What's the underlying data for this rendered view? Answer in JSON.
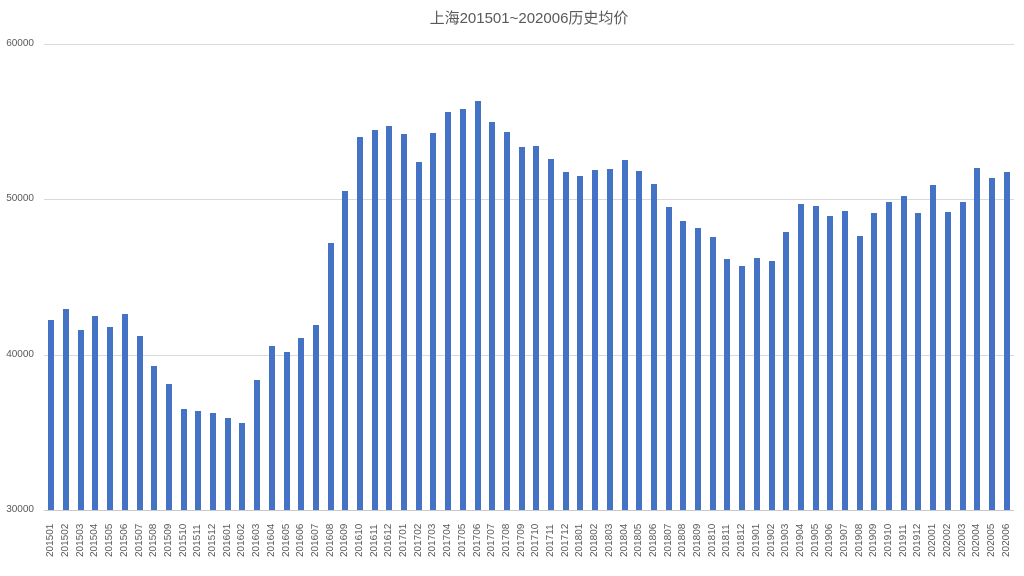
{
  "chart_data": {
    "type": "bar",
    "title": "上海201501~202006历史均价",
    "xlabel": "",
    "ylabel": "",
    "ylim": [
      30000,
      60000
    ],
    "yticks": [
      30000,
      40000,
      50000,
      60000
    ],
    "grid": true,
    "legend_position": "none",
    "bar_color": "#4472C4",
    "gridline_color": "#D9D9D9",
    "axis_line_color": "#C9C9C9",
    "text_color": "#595959",
    "categories": [
      "201501",
      "201502",
      "201503",
      "201504",
      "201505",
      "201506",
      "201507",
      "201508",
      "201509",
      "201510",
      "201511",
      "201512",
      "201601",
      "201602",
      "201603",
      "201604",
      "201605",
      "201606",
      "201607",
      "201608",
      "201609",
      "201610",
      "201611",
      "201612",
      "201701",
      "201702",
      "201703",
      "201704",
      "201705",
      "201706",
      "201707",
      "201708",
      "201709",
      "201710",
      "201711",
      "201712",
      "201801",
      "201802",
      "201803",
      "201804",
      "201805",
      "201806",
      "201807",
      "201808",
      "201809",
      "201810",
      "201811",
      "201812",
      "201901",
      "201902",
      "201903",
      "201904",
      "201905",
      "201906",
      "201907",
      "201908",
      "201909",
      "201910",
      "201911",
      "201912",
      "202001",
      "202002",
      "202003",
      "202004",
      "202005",
      "202006"
    ],
    "values": [
      42250,
      42950,
      41600,
      42500,
      41800,
      42650,
      41200,
      39300,
      38100,
      36500,
      36400,
      36250,
      35900,
      35600,
      38400,
      40550,
      40150,
      41100,
      41900,
      47200,
      50550,
      54000,
      54450,
      54700,
      54200,
      52400,
      54300,
      55650,
      55800,
      56300,
      54950,
      54350,
      53350,
      53450,
      52600,
      51750,
      51500,
      51900,
      51950,
      52550,
      51850,
      51000,
      49500,
      48600,
      48150,
      47550,
      46150,
      45700,
      46200,
      46050,
      47900,
      49700,
      49600,
      48900,
      49250,
      47650,
      49100,
      49800,
      50200,
      49150,
      50900,
      49200,
      49800,
      52000,
      51400,
      51750
    ]
  }
}
